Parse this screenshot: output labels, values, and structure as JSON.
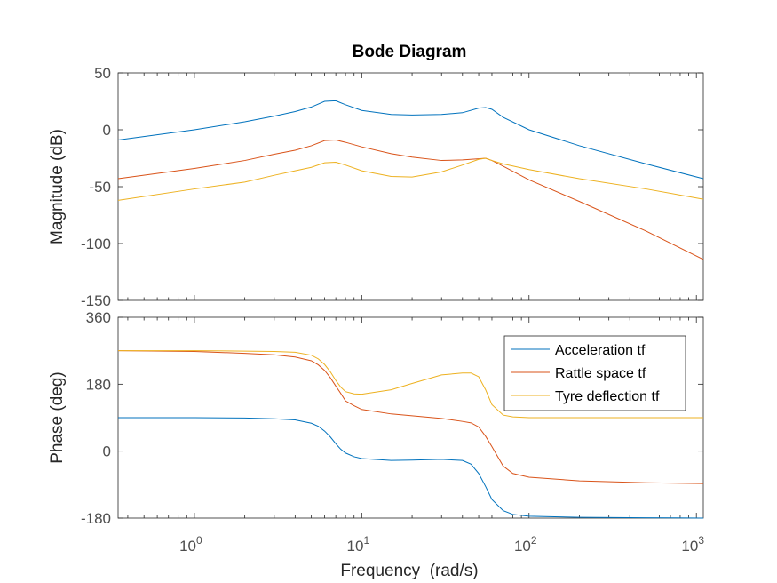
{
  "chart_data": {
    "type": "line",
    "title": "Bode Diagram",
    "xlabel": "Frequency  (rad/s)",
    "xscale": "log",
    "xlim": [
      0.35,
      1100
    ],
    "x_ticks": [
      {
        "value": 1,
        "base": "10",
        "exp": "0"
      },
      {
        "value": 10,
        "base": "10",
        "exp": "1"
      },
      {
        "value": 100,
        "base": "10",
        "exp": "2"
      },
      {
        "value": 1000,
        "base": "10",
        "exp": "3"
      }
    ],
    "legend_position": "top-right",
    "colors": [
      "#0072BD",
      "#D95319",
      "#EDB120"
    ],
    "series": [
      {
        "name": "Acceleration tf"
      },
      {
        "name": "Rattle space tf"
      },
      {
        "name": "Tyre deflection tf"
      }
    ],
    "panels": [
      {
        "ylabel": "Magnitude (dB)",
        "ylim": [
          -150,
          50
        ],
        "yticks": [
          50,
          0,
          -50,
          -100,
          -150
        ],
        "ytick_labels": [
          "50",
          "0",
          "-50",
          "-100",
          "-150"
        ],
        "series": [
          {
            "x": [
              0.35,
              1,
              2,
              3,
              4,
              5,
              6,
              7,
              8,
              10,
              15,
              20,
              30,
              40,
              50,
              55,
              60,
              70,
              100,
              200,
              500,
              1100
            ],
            "y": [
              -9,
              0,
              7,
              12,
              16,
              20,
              25,
              25.5,
              22,
              17,
              13.5,
              13,
              13.5,
              15,
              19,
              19.5,
              18,
              11,
              0,
              -14,
              -30,
              -43
            ]
          },
          {
            "x": [
              0.35,
              1,
              2,
              3,
              4,
              5,
              6,
              7,
              8,
              10,
              15,
              20,
              30,
              40,
              50,
              55,
              60,
              70,
              100,
              200,
              500,
              1100
            ],
            "y": [
              -43,
              -34,
              -27,
              -21.5,
              -18,
              -14,
              -9.5,
              -9,
              -11,
              -15,
              -21,
              -24,
              -27,
              -26.5,
              -25.5,
              -25,
              -27,
              -32,
              -44,
              -63,
              -89,
              -114
            ]
          },
          {
            "x": [
              0.35,
              1,
              2,
              3,
              4,
              5,
              6,
              7,
              8,
              10,
              15,
              20,
              30,
              40,
              50,
              55,
              60,
              70,
              100,
              200,
              500,
              1100
            ],
            "y": [
              -62,
              -52,
              -46,
              -40,
              -36,
              -33,
              -29,
              -28.5,
              -31,
              -36,
              -41,
              -41.5,
              -37,
              -31,
              -26,
              -25,
              -27,
              -30,
              -35,
              -43,
              -52,
              -61
            ]
          }
        ]
      },
      {
        "ylabel": "Phase (deg)",
        "ylim": [
          -180,
          360
        ],
        "yticks": [
          360,
          180,
          0,
          -180
        ],
        "ytick_labels": [
          "360",
          "180",
          "0",
          "-180"
        ],
        "series": [
          {
            "x": [
              0.35,
              1,
              2,
              3,
              4,
              5,
              5.5,
              6,
              6.5,
              7,
              7.5,
              8,
              9,
              10,
              15,
              20,
              30,
              40,
              45,
              50,
              55,
              60,
              70,
              80,
              100,
              200,
              500,
              1100
            ],
            "y": [
              90,
              90,
              89,
              87,
              84,
              75,
              67,
              54,
              38,
              20,
              5,
              -5,
              -15,
              -20,
              -25,
              -24,
              -22,
              -25,
              -35,
              -60,
              -95,
              -130,
              -160,
              -170,
              -175,
              -178,
              -179,
              -180
            ]
          },
          {
            "x": [
              0.35,
              1,
              2,
              3,
              4,
              5,
              5.5,
              6,
              6.5,
              7,
              7.5,
              8,
              9,
              10,
              15,
              20,
              30,
              40,
              45,
              50,
              55,
              60,
              70,
              80,
              100,
              200,
              500,
              1100
            ],
            "y": [
              270,
              268,
              263,
              259,
              253,
              243,
              232,
              217,
              197,
              175,
              155,
              135,
              122,
              112,
              100,
              95,
              88,
              80,
              76,
              65,
              40,
              12,
              -40,
              -60,
              -70,
              -80,
              -85,
              -87
            ]
          },
          {
            "x": [
              0.35,
              1,
              2,
              3,
              4,
              5,
              5.5,
              6,
              6.5,
              7,
              7.5,
              8,
              9,
              10,
              15,
              20,
              30,
              40,
              45,
              50,
              55,
              60,
              70,
              80,
              100,
              200,
              500,
              1100
            ],
            "y": [
              270,
              270,
              269,
              268,
              266,
              258,
              248,
              233,
              213,
              190,
              172,
              160,
              154,
              153,
              165,
              182,
              205,
              210,
              210,
              200,
              165,
              125,
              97,
              92,
              90,
              90,
              90,
              90
            ]
          }
        ]
      }
    ]
  }
}
